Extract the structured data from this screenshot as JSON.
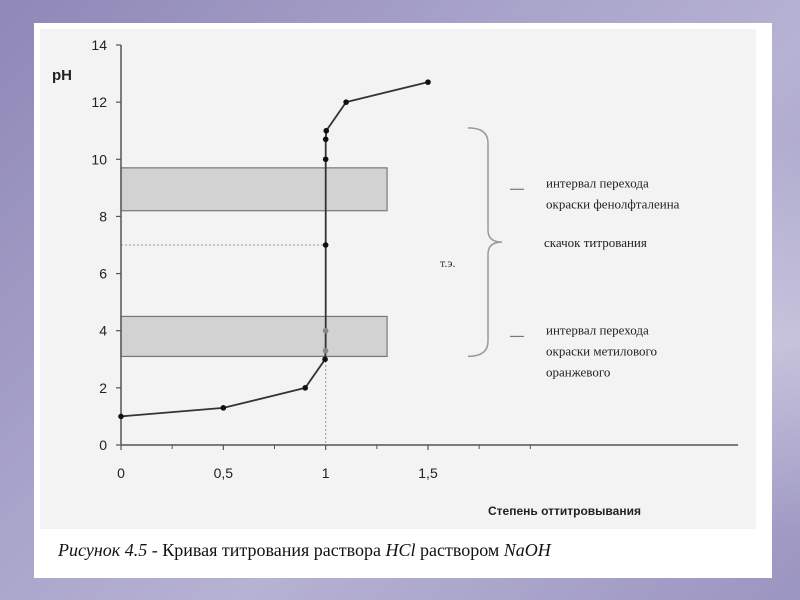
{
  "chart_data": {
    "type": "line",
    "ylabel": "pH",
    "xlabel": "Степень оттитровывания",
    "xlim": [
      0,
      1.5
    ],
    "ylim": [
      0,
      14
    ],
    "x_ticks": [
      {
        "value": 0,
        "label": "0"
      },
      {
        "value": 0.5,
        "label": "0,5"
      },
      {
        "value": 1,
        "label": "1"
      },
      {
        "value": 1.5,
        "label": "1,5"
      }
    ],
    "y_ticks": [
      {
        "value": 0,
        "label": "0"
      },
      {
        "value": 2,
        "label": "2"
      },
      {
        "value": 4,
        "label": "4"
      },
      {
        "value": 6,
        "label": "6"
      },
      {
        "value": 8,
        "label": "8"
      },
      {
        "value": 10,
        "label": "10"
      },
      {
        "value": 12,
        "label": "12"
      },
      {
        "value": 14,
        "label": "14"
      }
    ],
    "series": [
      {
        "points": [
          {
            "x": 0,
            "y": 1.0
          },
          {
            "x": 0.5,
            "y": 1.3
          },
          {
            "x": 0.9,
            "y": 2.0
          },
          {
            "x": 0.99,
            "y": 3.0
          },
          {
            "x": 0.999,
            "y": 3.3
          },
          {
            "x": 0.9999,
            "y": 4.0
          },
          {
            "x": 1.0,
            "y": 7.0
          },
          {
            "x": 1.0001,
            "y": 10.0
          },
          {
            "x": 1.001,
            "y": 10.7
          },
          {
            "x": 1.01,
            "y": 11.0
          },
          {
            "x": 1.1,
            "y": 12.0
          },
          {
            "x": 1.5,
            "y": 12.7
          }
        ]
      }
    ],
    "bands": [
      {
        "y_from": 8.2,
        "y_to": 9.7,
        "label_lines": [
          "интервал перехода",
          "окраски фенолфталеина"
        ]
      },
      {
        "y_from": 3.1,
        "y_to": 4.5,
        "label_lines": [
          "интервал перехода",
          "окраски метилового",
          "оранжевого"
        ]
      }
    ],
    "equivalence": {
      "x": 1.0,
      "y": 7.0,
      "label": "т.э."
    },
    "jump": {
      "y_from": 3.1,
      "y_to": 11.1,
      "label": "скачок титрования"
    },
    "colors": {
      "line": "#333333",
      "band": "#d2d2d2",
      "marker": "#111111"
    }
  },
  "caption": {
    "prefix": "Рисунок 4.5",
    "text1": " - Кривая титрования раствора ",
    "hcl": "HCl",
    "text2": " раствором ",
    "naoh": "NaOH"
  }
}
